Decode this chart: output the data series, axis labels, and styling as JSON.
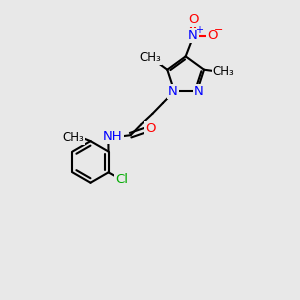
{
  "background_color": "#e8e8e8",
  "bond_color": "#000000",
  "atom_colors": {
    "N": "#0000ff",
    "O": "#ff0000",
    "Cl": "#00aa00",
    "C": "#000000",
    "H": "#555555"
  },
  "figsize": [
    3.0,
    3.0
  ],
  "dpi": 100,
  "xlim": [
    0,
    10
  ],
  "ylim": [
    0,
    10
  ]
}
